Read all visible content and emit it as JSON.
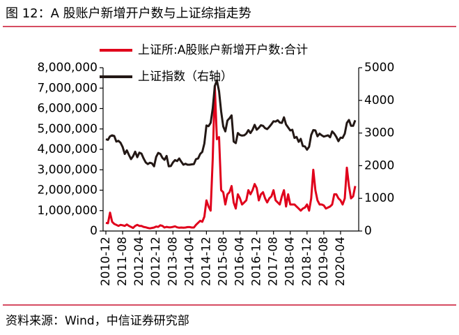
{
  "chart_data": {
    "type": "line",
    "title": "图 12：A 股账户新增开户数与上证综指走势",
    "source": "资料来源：Wind，中信证券研究部",
    "categories": [
      "2010-12",
      null,
      null,
      null,
      null,
      null,
      null,
      null,
      "2011-08",
      null,
      null,
      null,
      null,
      null,
      null,
      null,
      "2012-04",
      null,
      null,
      null,
      null,
      null,
      null,
      null,
      "2012-12",
      null,
      null,
      null,
      null,
      null,
      null,
      null,
      "2013-08",
      null,
      null,
      null,
      null,
      null,
      null,
      null,
      "2014-04",
      null,
      null,
      null,
      null,
      null,
      null,
      null,
      "2014-12",
      null,
      null,
      null,
      null,
      null,
      null,
      null,
      "2015-08",
      null,
      null,
      null,
      null,
      null,
      null,
      null,
      "2016-04",
      null,
      null,
      null,
      null,
      null,
      null,
      null,
      "2016-12",
      null,
      null,
      null,
      null,
      null,
      null,
      null,
      "2017-08",
      null,
      null,
      null,
      null,
      null,
      null,
      null,
      "2018-04",
      null,
      null,
      null,
      null,
      null,
      null,
      null,
      "2018-12",
      null,
      null,
      null,
      null,
      null,
      null,
      null,
      "2019-08",
      null,
      null,
      null,
      null,
      null,
      null,
      null,
      "2020-04",
      null,
      null,
      null,
      null,
      null,
      null,
      null
    ],
    "series": [
      {
        "name": "上证所:A股账户新增开户数:合计",
        "color": "#e0001b",
        "values": [
          400000,
          380000,
          900000,
          450000,
          350000,
          300000,
          250000,
          300000,
          280000,
          250000,
          320000,
          250000,
          200000,
          150000,
          250000,
          300000,
          250000,
          250000,
          200000,
          180000,
          150000,
          130000,
          150000,
          170000,
          220000,
          200000,
          280000,
          250000,
          170000,
          200000,
          180000,
          180000,
          200000,
          230000,
          180000,
          160000,
          170000,
          160000,
          170000,
          190000,
          190000,
          170000,
          170000,
          300000,
          400000,
          500000,
          450000,
          700000,
          1500000,
          1200000,
          1000000,
          3500000,
          7100000,
          4500000,
          4600000,
          2000000,
          1900000,
          1300000,
          1800000,
          1900000,
          2200000,
          1400000,
          1100000,
          1800000,
          1600000,
          1300000,
          1400000,
          1500000,
          2000000,
          1800000,
          2000000,
          2300000,
          2100000,
          1500000,
          1800000,
          1900000,
          1600000,
          1400000,
          1600000,
          1700000,
          2000000,
          1500000,
          1400000,
          1300000,
          1700000,
          2000000,
          1200000,
          1800000,
          1300000,
          1300000,
          1300000,
          1200000,
          1100000,
          1000000,
          1100000,
          1150000,
          1300000,
          1000000,
          1600000,
          3000000,
          2000000,
          1500000,
          1300000,
          1300000,
          1250000,
          1100000,
          1150000,
          1200000,
          1300000,
          1800000,
          1800000,
          1600000,
          1500000,
          1300000,
          1600000,
          3100000,
          2200000,
          1600000,
          1700000,
          2200000
        ]
      },
      {
        "name": "上证指数（右轴）",
        "color": "#231815",
        "axis": "y2",
        "values": [
          2810,
          2790,
          2900,
          2930,
          2910,
          2740,
          2760,
          2700,
          2570,
          2360,
          2470,
          2330,
          2200,
          2290,
          2430,
          2260,
          2400,
          2370,
          2220,
          2100,
          2050,
          2090,
          2070,
          1980,
          2270,
          2390,
          2360,
          2240,
          2180,
          2300,
          1980,
          1990,
          2100,
          2170,
          2140,
          2220,
          2120,
          2030,
          2060,
          2030,
          2030,
          2040,
          2050,
          2200,
          2220,
          2360,
          2420,
          2680,
          3230,
          3210,
          3310,
          3750,
          4440,
          4610,
          4280,
          3660,
          3200,
          3050,
          3380,
          3450,
          3540,
          2740,
          2690,
          3000,
          2940,
          2920,
          2930,
          2980,
          3090,
          3000,
          3100,
          3250,
          3100,
          3160,
          3240,
          3220,
          3150,
          3120,
          3190,
          3270,
          3360,
          3350,
          3390,
          3320,
          3310,
          3480,
          3260,
          3170,
          3080,
          3100,
          2850,
          2880,
          2730,
          2820,
          2600,
          2590,
          2490,
          2580,
          2940,
          3090,
          3080,
          2900,
          2980,
          2930,
          2890,
          2910,
          2930,
          2870,
          3050,
          2980,
          2880,
          2750,
          2860,
          2850,
          2980,
          3310,
          3400,
          3220,
          3220,
          3390
        ]
      }
    ],
    "ylim": [
      0,
      8000000
    ],
    "yticks": [
      0,
      {
        "value": 1000000,
        "label": "1,000,000"
      },
      {
        "value": 2000000,
        "label": "2,000,000"
      },
      {
        "value": 3000000,
        "label": "3,000,000"
      },
      {
        "value": 4000000,
        "label": "4,000,000"
      },
      {
        "value": 5000000,
        "label": "5,000,000"
      },
      {
        "value": 6000000,
        "label": "6,000,000"
      },
      {
        "value": 7000000,
        "label": "7,000,000"
      },
      {
        "value": 8000000,
        "label": "8,000,000"
      }
    ],
    "y2lim": [
      0,
      5000
    ],
    "y2ticks": [
      0,
      1000,
      2000,
      3000,
      4000,
      5000
    ],
    "grid": false
  }
}
